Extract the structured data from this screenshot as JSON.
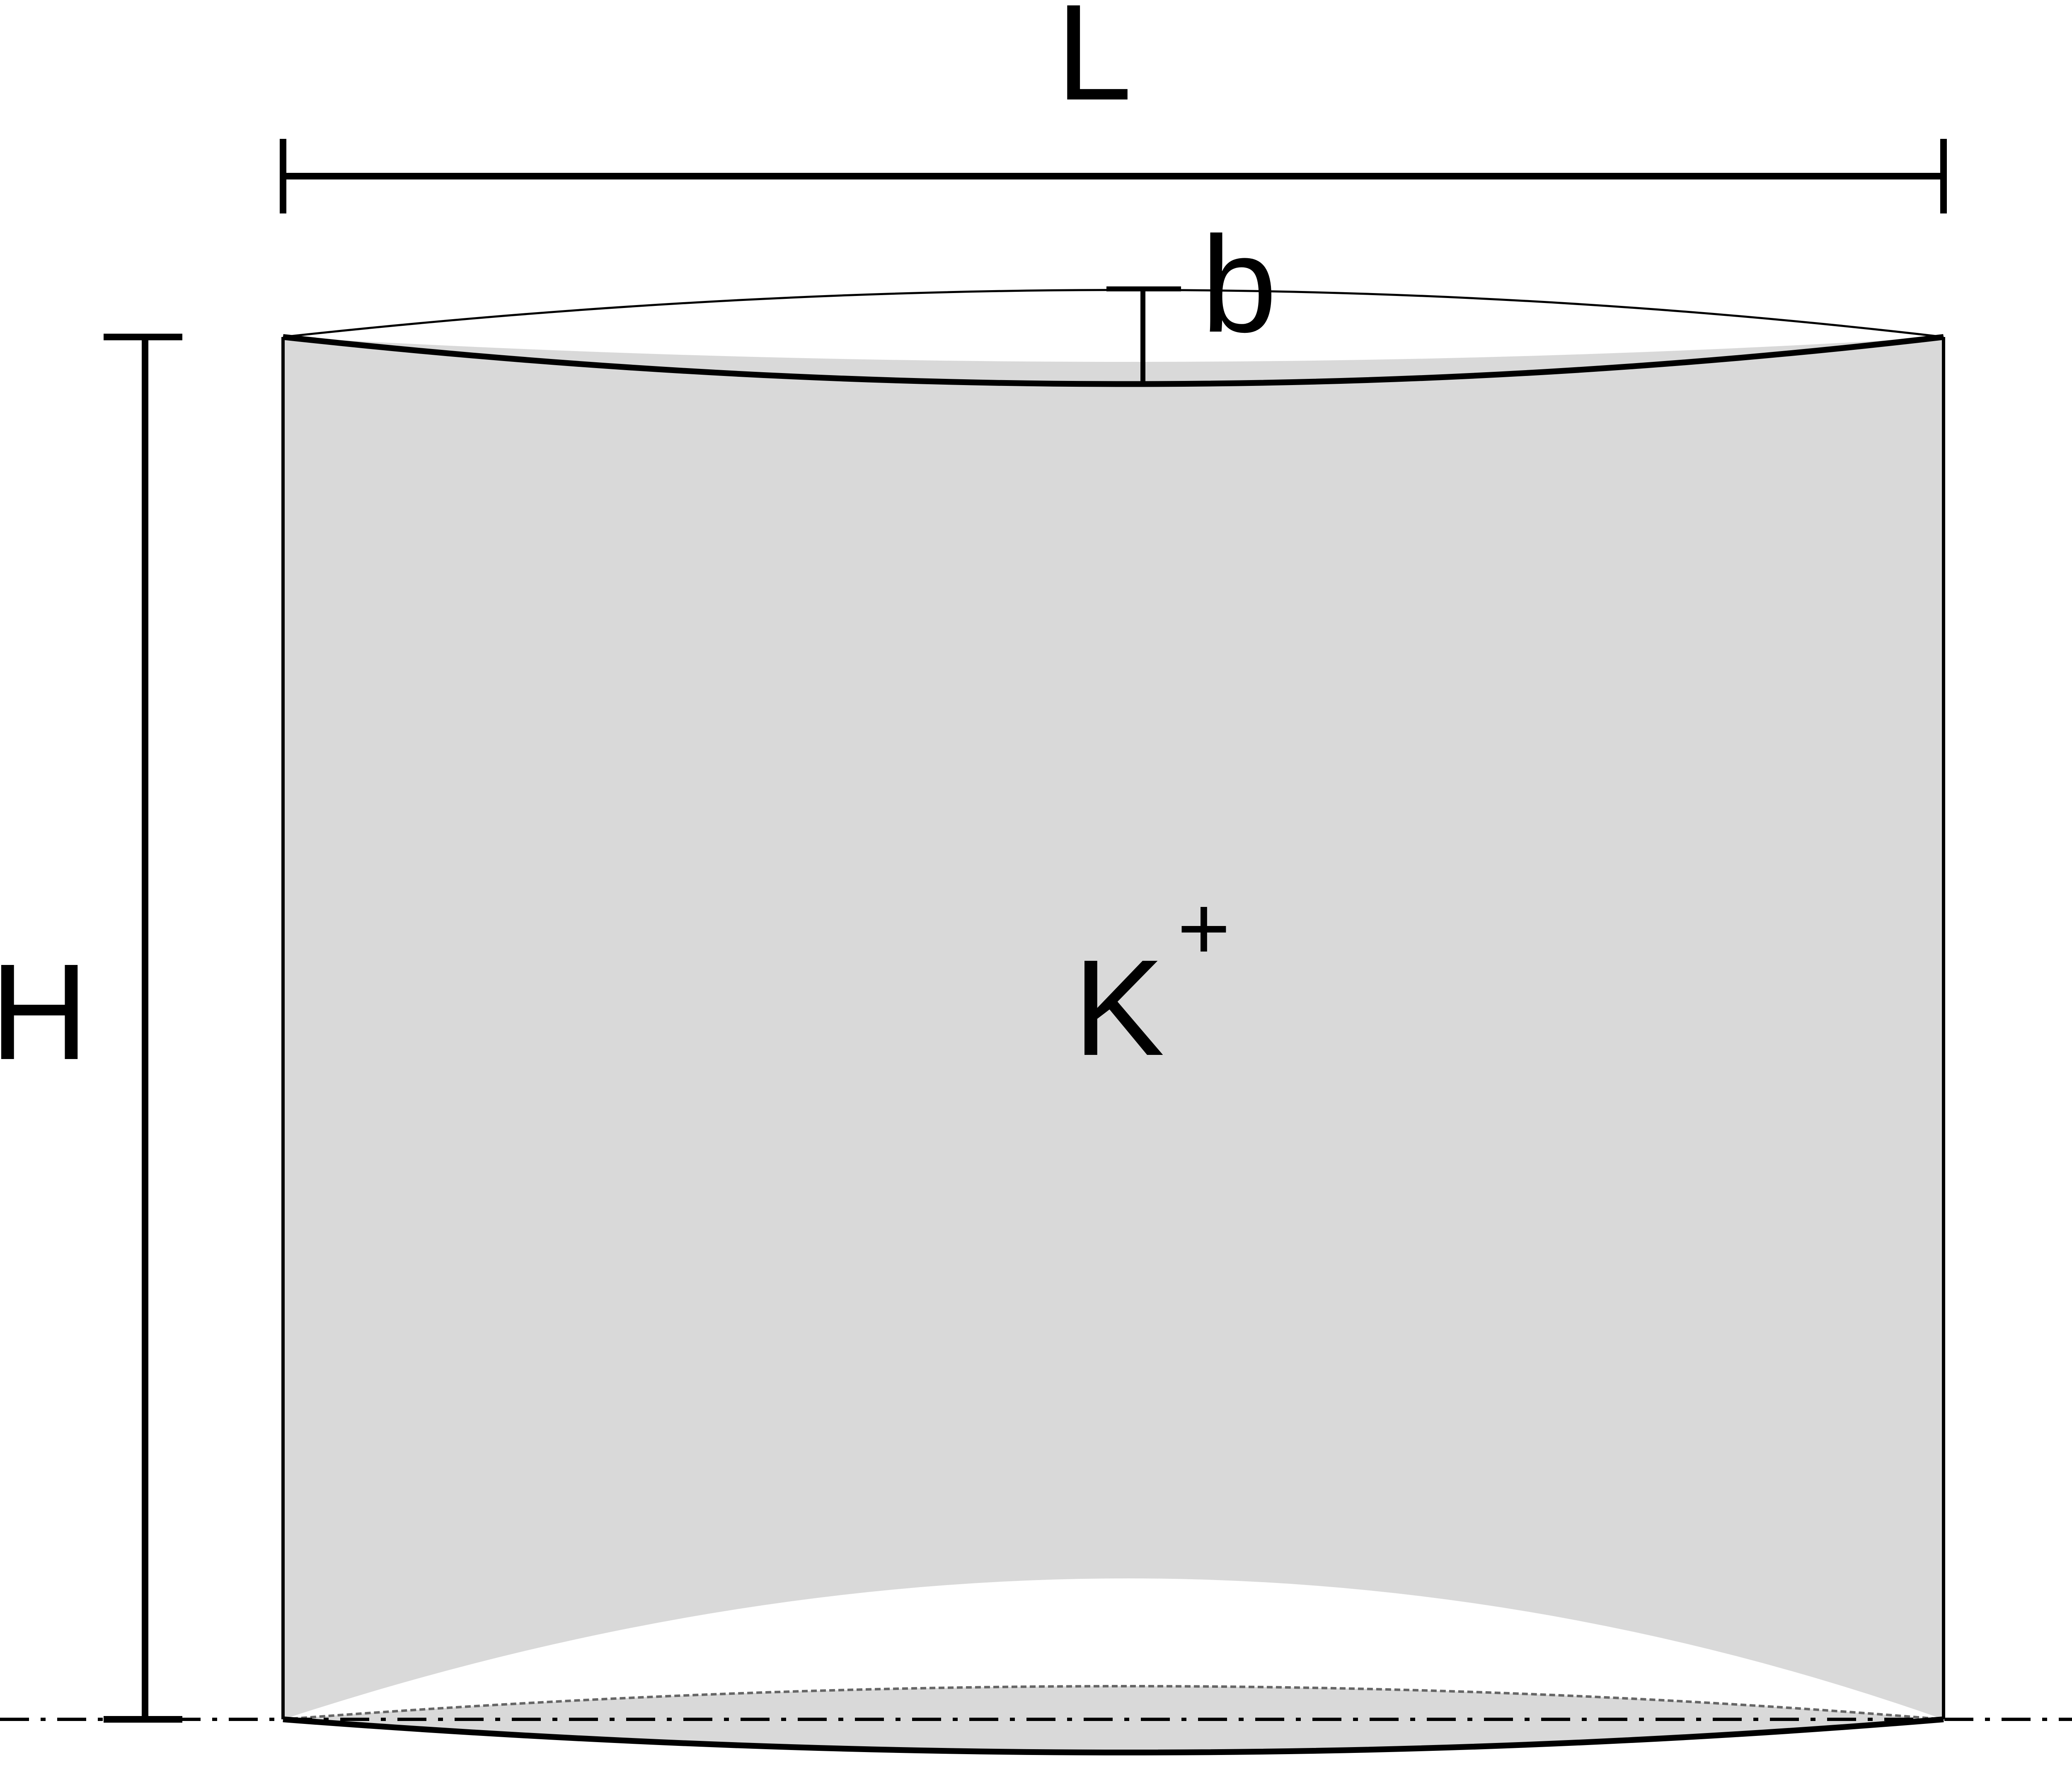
{
  "labels": {
    "length": "L",
    "height": "H",
    "bulge": "b",
    "ion": "K",
    "charge": "+"
  },
  "colors": {
    "fill": "#d9d9d9",
    "stroke": "#000000",
    "background": "#ffffff"
  }
}
